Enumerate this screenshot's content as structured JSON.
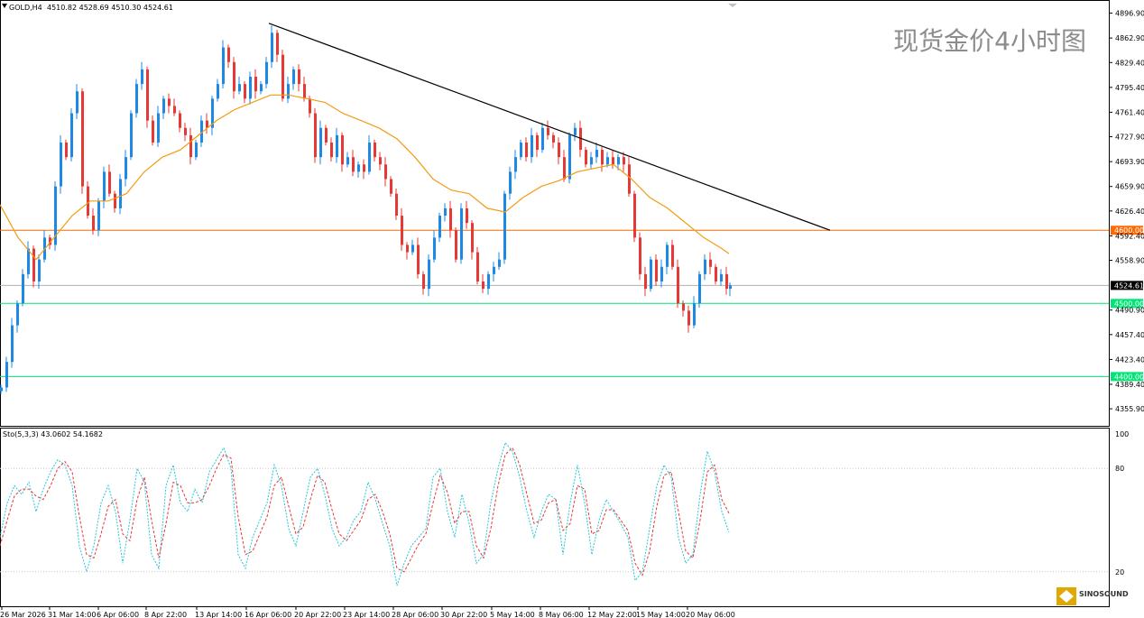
{
  "header": {
    "symbol": "GOLD,H4",
    "ohlc": "4510.82 4528.69 4510.30 4524.61",
    "watermark": "现货金价4小时图"
  },
  "indicator": {
    "label": "Sto(5,3,3) 43.0602 54.1682",
    "levels": [
      "100",
      "80",
      "20"
    ]
  },
  "colors": {
    "bull": "#1e88e5",
    "bear": "#e53935",
    "ma": "#f39c12",
    "trendline": "#000000",
    "level_4600": "#ff6a00",
    "level_green": "#00e676",
    "price_line": "#b0b0b0",
    "stoch_main": "#26c6da",
    "stoch_signal": "#e53935"
  },
  "logo": "SINOSOUND",
  "chart_data": {
    "type": "candlestick",
    "symbol": "GOLD",
    "timeframe": "H4",
    "ylim": [
      4340,
      4905
    ],
    "y_ticks": [
      "4896.90",
      "4862.90",
      "4829.40",
      "4795.40",
      "4761.40",
      "4727.90",
      "4693.90",
      "4659.90",
      "4626.40",
      "4592.40",
      "4558.90",
      "4524.61",
      "4490.90",
      "4457.40",
      "4423.40",
      "4389.40",
      "4355.90"
    ],
    "x_ticks": [
      "26 Mar 2026",
      "31 Mar 14:00",
      "6 Apr 06:00",
      "8 Apr 22:00",
      "13 Apr 14:00",
      "16 Apr 06:00",
      "20 Apr 22:00",
      "23 Apr 14:00",
      "28 Apr 06:00",
      "30 Apr 22:00",
      "5 May 14:00",
      "8 May 06:00",
      "12 May 22:00",
      "15 May 14:00",
      "20 May 06:00"
    ],
    "close_path": [
      [
        0,
        4385
      ],
      [
        6,
        4420
      ],
      [
        12,
        4470
      ],
      [
        18,
        4500
      ],
      [
        24,
        4540
      ],
      [
        30,
        4575
      ],
      [
        36,
        4530
      ],
      [
        42,
        4560
      ],
      [
        48,
        4590
      ],
      [
        54,
        4580
      ],
      [
        60,
        4660
      ],
      [
        66,
        4720
      ],
      [
        72,
        4700
      ],
      [
        78,
        4760
      ],
      [
        84,
        4790
      ],
      [
        90,
        4660
      ],
      [
        96,
        4620
      ],
      [
        102,
        4600
      ],
      [
        108,
        4640
      ],
      [
        114,
        4680
      ],
      [
        120,
        4650
      ],
      [
        126,
        4630
      ],
      [
        132,
        4670
      ],
      [
        138,
        4700
      ],
      [
        144,
        4760
      ],
      [
        150,
        4800
      ],
      [
        156,
        4820
      ],
      [
        162,
        4750
      ],
      [
        168,
        4720
      ],
      [
        174,
        4760
      ],
      [
        180,
        4780
      ],
      [
        186,
        4770
      ],
      [
        192,
        4760
      ],
      [
        198,
        4740
      ],
      [
        204,
        4730
      ],
      [
        210,
        4700
      ],
      [
        216,
        4720
      ],
      [
        222,
        4750
      ],
      [
        228,
        4740
      ],
      [
        234,
        4780
      ],
      [
        240,
        4800
      ],
      [
        246,
        4850
      ],
      [
        252,
        4830
      ],
      [
        258,
        4790
      ],
      [
        264,
        4800
      ],
      [
        270,
        4780
      ],
      [
        276,
        4810
      ],
      [
        282,
        4790
      ],
      [
        288,
        4800
      ],
      [
        294,
        4830
      ],
      [
        300,
        4870
      ],
      [
        306,
        4840
      ],
      [
        312,
        4780
      ],
      [
        318,
        4800
      ],
      [
        324,
        4820
      ],
      [
        330,
        4800
      ],
      [
        336,
        4780
      ],
      [
        342,
        4760
      ],
      [
        348,
        4700
      ],
      [
        354,
        4740
      ],
      [
        360,
        4720
      ],
      [
        366,
        4700
      ],
      [
        372,
        4730
      ],
      [
        378,
        4690
      ],
      [
        384,
        4700
      ],
      [
        390,
        4680
      ],
      [
        396,
        4690
      ],
      [
        402,
        4680
      ],
      [
        408,
        4720
      ],
      [
        414,
        4700
      ],
      [
        420,
        4690
      ],
      [
        426,
        4670
      ],
      [
        432,
        4650
      ],
      [
        438,
        4620
      ],
      [
        444,
        4580
      ],
      [
        450,
        4570
      ],
      [
        456,
        4580
      ],
      [
        462,
        4540
      ],
      [
        468,
        4520
      ],
      [
        474,
        4560
      ],
      [
        480,
        4590
      ],
      [
        486,
        4620
      ],
      [
        492,
        4630
      ],
      [
        498,
        4600
      ],
      [
        504,
        4560
      ],
      [
        510,
        4630
      ],
      [
        516,
        4610
      ],
      [
        522,
        4570
      ],
      [
        528,
        4530
      ],
      [
        534,
        4520
      ],
      [
        540,
        4540
      ],
      [
        546,
        4550
      ],
      [
        552,
        4560
      ],
      [
        558,
        4650
      ],
      [
        564,
        4680
      ],
      [
        570,
        4700
      ],
      [
        576,
        4720
      ],
      [
        582,
        4700
      ],
      [
        588,
        4730
      ],
      [
        594,
        4710
      ],
      [
        600,
        4740
      ],
      [
        606,
        4730
      ],
      [
        612,
        4720
      ],
      [
        618,
        4700
      ],
      [
        624,
        4670
      ],
      [
        630,
        4730
      ],
      [
        636,
        4740
      ],
      [
        642,
        4710
      ],
      [
        648,
        4690
      ],
      [
        654,
        4700
      ],
      [
        660,
        4710
      ],
      [
        666,
        4690
      ],
      [
        672,
        4700
      ],
      [
        678,
        4690
      ],
      [
        684,
        4700
      ],
      [
        690,
        4690
      ],
      [
        696,
        4650
      ],
      [
        702,
        4590
      ],
      [
        708,
        4540
      ],
      [
        714,
        4520
      ],
      [
        720,
        4560
      ],
      [
        726,
        4530
      ],
      [
        732,
        4550
      ],
      [
        738,
        4580
      ],
      [
        744,
        4550
      ],
      [
        750,
        4500
      ],
      [
        756,
        4490
      ],
      [
        762,
        4470
      ],
      [
        768,
        4500
      ],
      [
        774,
        4540
      ],
      [
        780,
        4560
      ],
      [
        786,
        4550
      ],
      [
        792,
        4530
      ],
      [
        798,
        4540
      ],
      [
        804,
        4520
      ],
      [
        808,
        4524.61
      ]
    ],
    "ma_path": [
      [
        0,
        4635
      ],
      [
        20,
        4590
      ],
      [
        40,
        4560
      ],
      [
        60,
        4590
      ],
      [
        80,
        4620
      ],
      [
        100,
        4640
      ],
      [
        120,
        4640
      ],
      [
        140,
        4650
      ],
      [
        160,
        4680
      ],
      [
        180,
        4700
      ],
      [
        200,
        4710
      ],
      [
        220,
        4730
      ],
      [
        240,
        4750
      ],
      [
        260,
        4765
      ],
      [
        280,
        4775
      ],
      [
        300,
        4785
      ],
      [
        320,
        4785
      ],
      [
        340,
        4780
      ],
      [
        360,
        4775
      ],
      [
        380,
        4760
      ],
      [
        400,
        4750
      ],
      [
        420,
        4740
      ],
      [
        440,
        4725
      ],
      [
        460,
        4700
      ],
      [
        480,
        4670
      ],
      [
        500,
        4655
      ],
      [
        520,
        4650
      ],
      [
        540,
        4630
      ],
      [
        560,
        4625
      ],
      [
        580,
        4645
      ],
      [
        600,
        4660
      ],
      [
        620,
        4668
      ],
      [
        640,
        4680
      ],
      [
        660,
        4685
      ],
      [
        680,
        4690
      ],
      [
        700,
        4670
      ],
      [
        720,
        4645
      ],
      [
        740,
        4630
      ],
      [
        760,
        4610
      ],
      [
        780,
        4590
      ],
      [
        800,
        4575
      ],
      [
        808,
        4568
      ]
    ],
    "trendline": [
      [
        298,
        4883
      ],
      [
        920,
        4600
      ]
    ],
    "levels": [
      {
        "price": 4600,
        "label": "4600.00"
      },
      {
        "price": 4500,
        "label": "4500.00"
      },
      {
        "price": 4400,
        "label": "4400.00"
      }
    ],
    "last_price": {
      "price": 4524.61,
      "label": "4524.61"
    },
    "stochastic": {
      "params": "5,3,3",
      "main": 43.0602,
      "signal": 54.1682,
      "ylim": [
        0,
        100
      ],
      "levels": [
        80,
        20
      ],
      "main_path": [
        [
          0,
          40
        ],
        [
          8,
          60
        ],
        [
          16,
          70
        ],
        [
          24,
          65
        ],
        [
          32,
          72
        ],
        [
          40,
          55
        ],
        [
          48,
          68
        ],
        [
          56,
          78
        ],
        [
          64,
          85
        ],
        [
          72,
          82
        ],
        [
          80,
          70
        ],
        [
          88,
          35
        ],
        [
          96,
          20
        ],
        [
          104,
          35
        ],
        [
          112,
          60
        ],
        [
          120,
          70
        ],
        [
          128,
          55
        ],
        [
          136,
          25
        ],
        [
          144,
          50
        ],
        [
          152,
          80
        ],
        [
          160,
          72
        ],
        [
          168,
          30
        ],
        [
          176,
          22
        ],
        [
          184,
          70
        ],
        [
          192,
          82
        ],
        [
          200,
          60
        ],
        [
          208,
          55
        ],
        [
          216,
          68
        ],
        [
          224,
          60
        ],
        [
          232,
          78
        ],
        [
          240,
          85
        ],
        [
          248,
          92
        ],
        [
          256,
          80
        ],
        [
          264,
          30
        ],
        [
          272,
          22
        ],
        [
          280,
          40
        ],
        [
          288,
          50
        ],
        [
          296,
          60
        ],
        [
          304,
          82
        ],
        [
          312,
          70
        ],
        [
          320,
          45
        ],
        [
          328,
          35
        ],
        [
          336,
          55
        ],
        [
          344,
          75
        ],
        [
          352,
          80
        ],
        [
          360,
          65
        ],
        [
          368,
          45
        ],
        [
          376,
          35
        ],
        [
          384,
          40
        ],
        [
          392,
          50
        ],
        [
          400,
          55
        ],
        [
          408,
          72
        ],
        [
          416,
          62
        ],
        [
          424,
          48
        ],
        [
          432,
          35
        ],
        [
          440,
          12
        ],
        [
          448,
          25
        ],
        [
          456,
          35
        ],
        [
          464,
          40
        ],
        [
          472,
          45
        ],
        [
          480,
          75
        ],
        [
          488,
          80
        ],
        [
          496,
          55
        ],
        [
          504,
          40
        ],
        [
          512,
          65
        ],
        [
          520,
          48
        ],
        [
          528,
          25
        ],
        [
          536,
          30
        ],
        [
          544,
          60
        ],
        [
          552,
          80
        ],
        [
          560,
          95
        ],
        [
          568,
          90
        ],
        [
          576,
          75
        ],
        [
          584,
          55
        ],
        [
          592,
          40
        ],
        [
          600,
          55
        ],
        [
          608,
          65
        ],
        [
          616,
          62
        ],
        [
          624,
          30
        ],
        [
          632,
          60
        ],
        [
          640,
          82
        ],
        [
          648,
          60
        ],
        [
          656,
          30
        ],
        [
          664,
          50
        ],
        [
          672,
          62
        ],
        [
          680,
          55
        ],
        [
          688,
          48
        ],
        [
          696,
          40
        ],
        [
          704,
          15
        ],
        [
          712,
          20
        ],
        [
          720,
          45
        ],
        [
          728,
          70
        ],
        [
          736,
          82
        ],
        [
          744,
          75
        ],
        [
          752,
          40
        ],
        [
          760,
          25
        ],
        [
          768,
          30
        ],
        [
          776,
          65
        ],
        [
          784,
          90
        ],
        [
          792,
          78
        ],
        [
          800,
          55
        ],
        [
          808,
          43
        ]
      ],
      "signal_path": [
        [
          0,
          35
        ],
        [
          8,
          50
        ],
        [
          16,
          64
        ],
        [
          24,
          68
        ],
        [
          32,
          68
        ],
        [
          40,
          64
        ],
        [
          48,
          62
        ],
        [
          56,
          70
        ],
        [
          64,
          80
        ],
        [
          72,
          84
        ],
        [
          80,
          78
        ],
        [
          88,
          52
        ],
        [
          96,
          30
        ],
        [
          104,
          28
        ],
        [
          112,
          42
        ],
        [
          120,
          58
        ],
        [
          128,
          62
        ],
        [
          136,
          42
        ],
        [
          144,
          38
        ],
        [
          152,
          62
        ],
        [
          160,
          75
        ],
        [
          168,
          50
        ],
        [
          176,
          28
        ],
        [
          184,
          48
        ],
        [
          192,
          72
        ],
        [
          200,
          70
        ],
        [
          208,
          60
        ],
        [
          216,
          60
        ],
        [
          224,
          62
        ],
        [
          232,
          70
        ],
        [
          240,
          80
        ],
        [
          248,
          88
        ],
        [
          256,
          86
        ],
        [
          264,
          52
        ],
        [
          272,
          30
        ],
        [
          280,
          32
        ],
        [
          288,
          42
        ],
        [
          296,
          52
        ],
        [
          304,
          70
        ],
        [
          312,
          75
        ],
        [
          320,
          58
        ],
        [
          328,
          42
        ],
        [
          336,
          46
        ],
        [
          344,
          62
        ],
        [
          352,
          76
        ],
        [
          360,
          72
        ],
        [
          368,
          56
        ],
        [
          376,
          42
        ],
        [
          384,
          38
        ],
        [
          392,
          44
        ],
        [
          400,
          50
        ],
        [
          408,
          62
        ],
        [
          416,
          65
        ],
        [
          424,
          55
        ],
        [
          432,
          42
        ],
        [
          440,
          22
        ],
        [
          448,
          20
        ],
        [
          456,
          28
        ],
        [
          464,
          36
        ],
        [
          472,
          42
        ],
        [
          480,
          60
        ],
        [
          488,
          76
        ],
        [
          496,
          66
        ],
        [
          504,
          48
        ],
        [
          512,
          55
        ],
        [
          520,
          55
        ],
        [
          528,
          35
        ],
        [
          536,
          28
        ],
        [
          544,
          45
        ],
        [
          552,
          70
        ],
        [
          560,
          88
        ],
        [
          568,
          92
        ],
        [
          576,
          82
        ],
        [
          584,
          65
        ],
        [
          592,
          48
        ],
        [
          600,
          50
        ],
        [
          608,
          60
        ],
        [
          616,
          62
        ],
        [
          624,
          44
        ],
        [
          632,
          48
        ],
        [
          640,
          70
        ],
        [
          648,
          68
        ],
        [
          656,
          42
        ],
        [
          664,
          44
        ],
        [
          672,
          56
        ],
        [
          680,
          56
        ],
        [
          688,
          50
        ],
        [
          696,
          44
        ],
        [
          704,
          25
        ],
        [
          712,
          18
        ],
        [
          720,
          32
        ],
        [
          728,
          58
        ],
        [
          736,
          76
        ],
        [
          744,
          78
        ],
        [
          752,
          55
        ],
        [
          760,
          32
        ],
        [
          768,
          28
        ],
        [
          776,
          50
        ],
        [
          784,
          78
        ],
        [
          792,
          82
        ],
        [
          800,
          62
        ],
        [
          808,
          54
        ]
      ]
    }
  }
}
